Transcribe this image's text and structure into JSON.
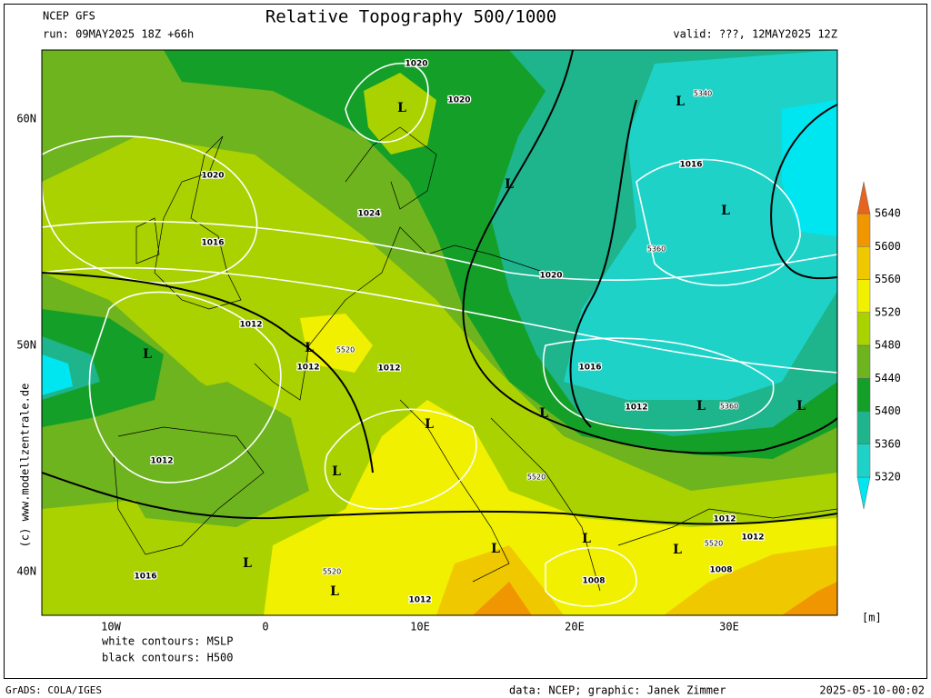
{
  "header": {
    "model": "NCEP GFS",
    "title": "Relative Topography 500/1000",
    "run": "run: 09MAY2025 18Z +66h",
    "valid": "valid: ???, 12MAY2025 12Z"
  },
  "map": {
    "lat_labels": [
      "60N",
      "50N",
      "40N"
    ],
    "lon_labels": [
      "10W",
      "0",
      "10E",
      "20E",
      "30E"
    ],
    "watermark": "(c) www.modellzentrale.de",
    "pressure_labels": [
      "1020",
      "1020",
      "1020",
      "1024",
      "1016",
      "1020",
      "1012",
      "1012",
      "1012",
      "1016",
      "1012",
      "1012",
      "1016",
      "1012",
      "1012",
      "1016",
      "1008",
      "1008",
      "1012"
    ],
    "height_labels": [
      "5340",
      "5360",
      "5520",
      "5360",
      "5520",
      "5520",
      "5520"
    ],
    "low_labels": [
      "L",
      "L",
      "L",
      "L",
      "L",
      "L",
      "L",
      "L",
      "L",
      "L",
      "L",
      "L",
      "L",
      "L",
      "L",
      "L"
    ]
  },
  "colorbar": {
    "levels": [
      5320,
      5360,
      5400,
      5440,
      5480,
      5520,
      5560,
      5600,
      5640
    ],
    "colors": [
      "#00e6f0",
      "#1ed2c8",
      "#1eb48c",
      "#14a028",
      "#6eb41e",
      "#aad200",
      "#f0f000",
      "#f0c800",
      "#f09600",
      "#e6641e"
    ],
    "unit": "[m]"
  },
  "notes": [
    "white contours: MSLP",
    "black contours: H500"
  ],
  "footer": {
    "left": "GrADS: COLA/IGES",
    "credit": "data: NCEP; graphic: Janek Zimmer",
    "timestamp": "2025-05-10-00:02"
  }
}
